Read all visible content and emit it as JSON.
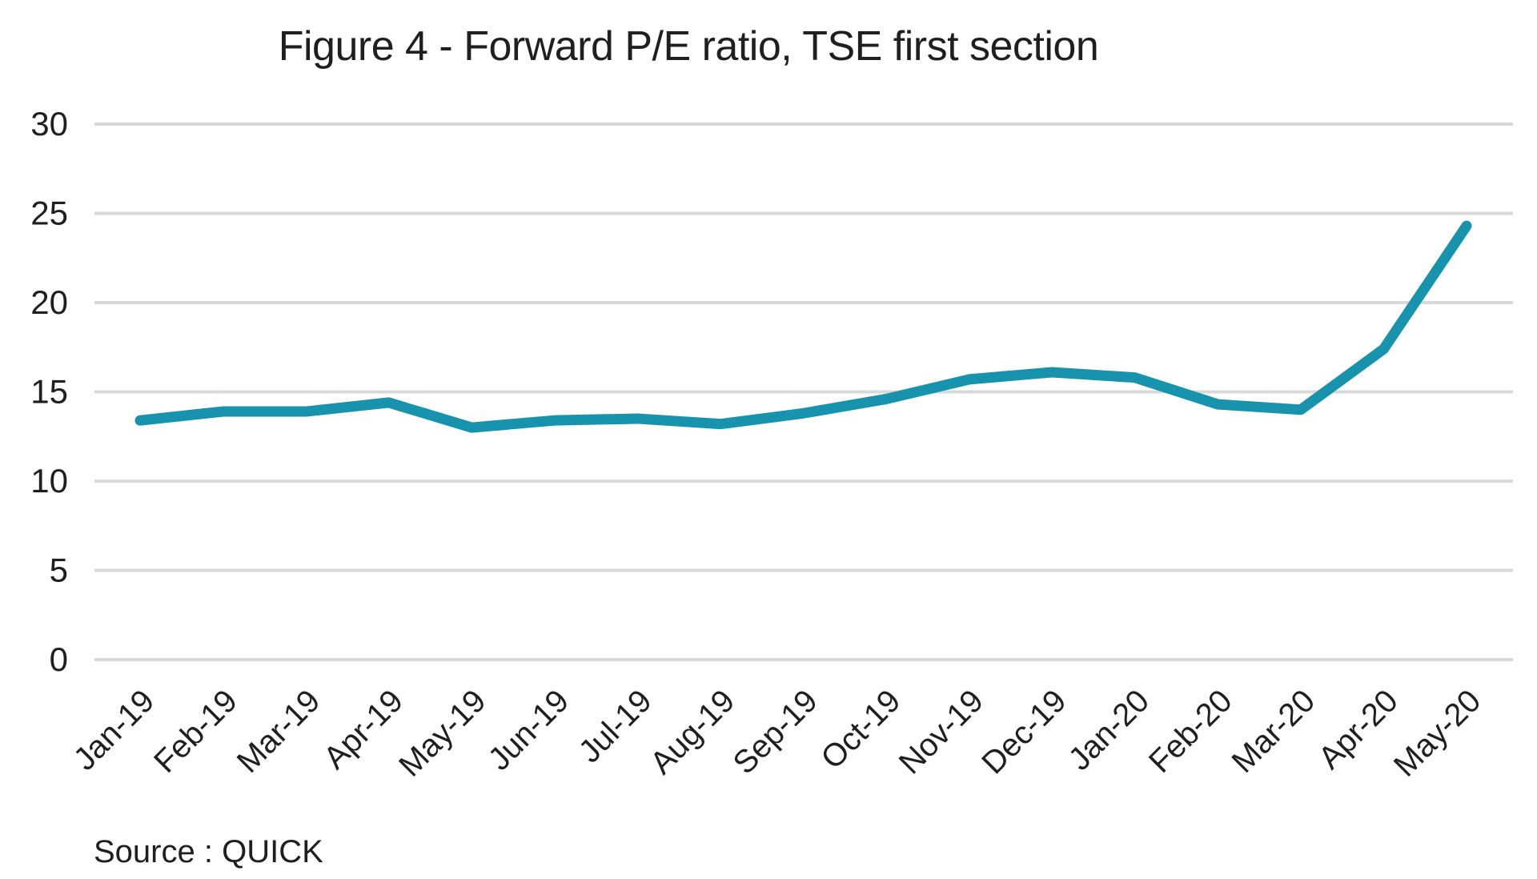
{
  "figure": {
    "title": "Figure 4 - Forward P/E ratio, TSE first section",
    "source": "Source : QUICK"
  },
  "chart_data": {
    "type": "line",
    "title": "Figure 4 - Forward P/E ratio, TSE first section",
    "categories": [
      "Jan-19",
      "Feb-19",
      "Mar-19",
      "Apr-19",
      "May-19",
      "Jun-19",
      "Jul-19",
      "Aug-19",
      "Sep-19",
      "Oct-19",
      "Nov-19",
      "Dec-19",
      "Jan-20",
      "Feb-20",
      "Mar-20",
      "Apr-20",
      "May-20"
    ],
    "series": [
      {
        "name": "Forward P/E ratio, TSE first section",
        "values": [
          13.4,
          13.9,
          13.9,
          14.4,
          13.0,
          13.4,
          13.5,
          13.2,
          13.8,
          14.6,
          15.7,
          16.1,
          15.8,
          14.3,
          14.0,
          17.4,
          24.3
        ]
      }
    ],
    "xlabel": "",
    "ylabel": "",
    "ylim": [
      0,
      30
    ],
    "yticks": [
      0,
      5,
      10,
      15,
      20,
      25,
      30
    ],
    "grid": "horizontal-only",
    "legend": "none",
    "annotations": [],
    "source": "Source : QUICK",
    "colors": {
      "line": "#1793ad",
      "gridline": "#d9d9d9",
      "text": "#1f1f1f",
      "background": "#ffffff"
    }
  }
}
